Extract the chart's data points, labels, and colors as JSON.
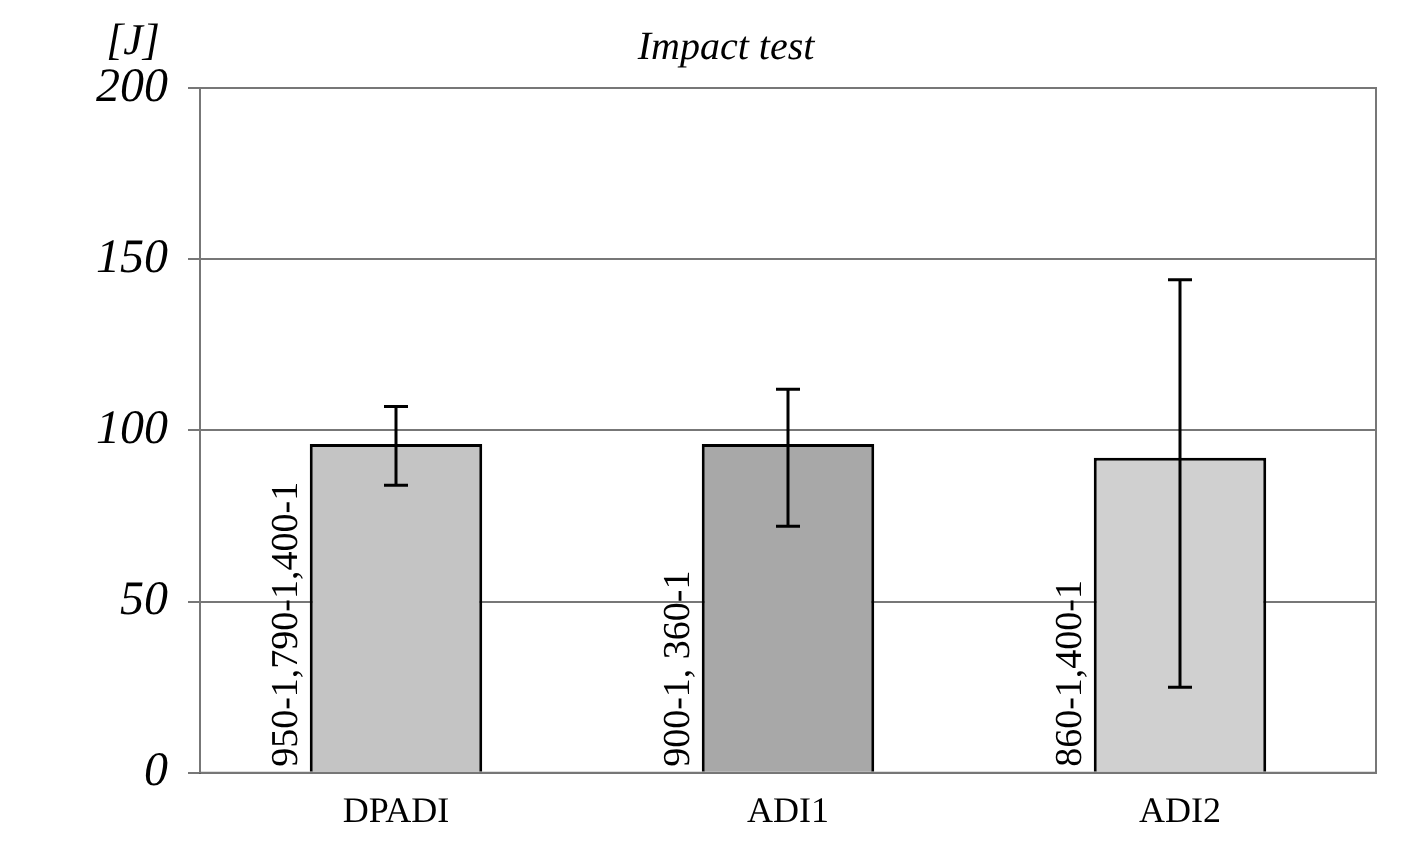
{
  "chart_data": {
    "type": "bar",
    "title": "Impact test",
    "ylabel": "[J]",
    "categories": [
      "DPADI",
      "ADI1",
      "ADI2"
    ],
    "values": [
      96,
      96,
      92
    ],
    "errors": [
      [
        84,
        107
      ],
      [
        72,
        112
      ],
      [
        25,
        144
      ]
    ],
    "colors": [
      "#c4c4c4",
      "#a8a8a8",
      "#d0d0d0"
    ],
    "ylim": [
      0,
      200
    ],
    "yticks": [
      0,
      50,
      100,
      150,
      200
    ],
    "grid": "y",
    "legend": false,
    "annotations": [
      "950-1,790-1,400-1",
      "900-1, 360-1",
      "860-1,400-1"
    ]
  }
}
